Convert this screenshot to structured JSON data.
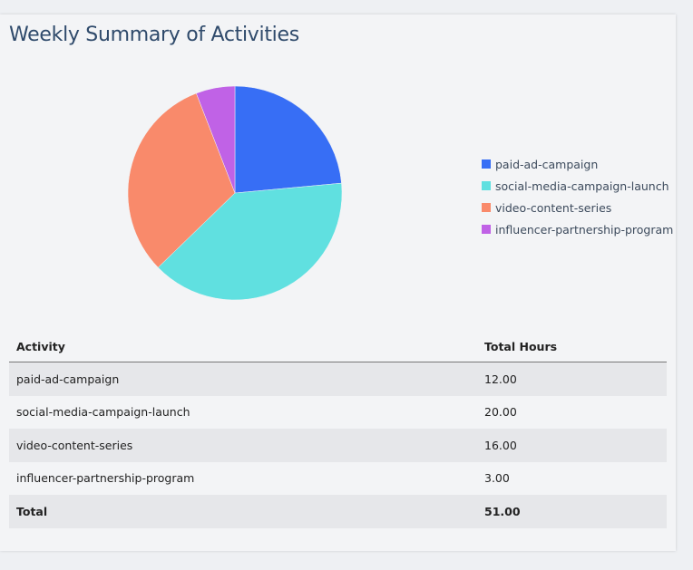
{
  "title": "Weekly Summary of Activities",
  "chart_data": {
    "type": "pie",
    "categories": [
      "paid-ad-campaign",
      "social-media-campaign-launch",
      "video-content-series",
      "influencer-partnership-program"
    ],
    "values": [
      12,
      20,
      16,
      3
    ],
    "colors": [
      "#376ef5",
      "#60e0e0",
      "#f98a6b",
      "#c062e6"
    ],
    "legend_position": "right"
  },
  "table": {
    "headers": [
      "Activity",
      "Total Hours"
    ],
    "rows": [
      [
        "paid-ad-campaign",
        "12.00"
      ],
      [
        "social-media-campaign-launch",
        "20.00"
      ],
      [
        "video-content-series",
        "16.00"
      ],
      [
        "influencer-partnership-program",
        "3.00"
      ]
    ],
    "total": [
      "Total",
      "51.00"
    ]
  }
}
